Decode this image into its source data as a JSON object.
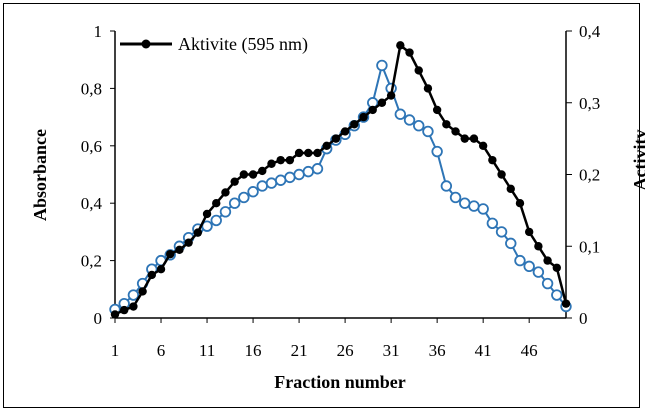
{
  "chart_data": {
    "type": "line",
    "title": "",
    "xlabel": "Fraction number",
    "ylabel_left": "Absorbance",
    "ylabel_right": "Activitv",
    "x_ticks": [
      "1",
      "6",
      "11",
      "16",
      "21",
      "26",
      "31",
      "36",
      "41",
      "46"
    ],
    "y_left_ticks": [
      "0",
      "0,2",
      "0,4",
      "0,6",
      "0,8",
      "1"
    ],
    "y_right_ticks": [
      "0",
      "0,1",
      "0,2",
      "0,3",
      "0,4"
    ],
    "ylim_left": [
      0,
      1
    ],
    "ylim_right": [
      0,
      0.4
    ],
    "xlim": [
      1,
      50
    ],
    "legend": {
      "position": "top-left",
      "label": "Aktivite (595 nm)"
    },
    "series": [
      {
        "name": "Aktivite (595 nm)",
        "axis": "right",
        "color": "#000000",
        "x": [
          1,
          2,
          3,
          4,
          5,
          6,
          7,
          8,
          9,
          10,
          11,
          12,
          13,
          14,
          15,
          16,
          17,
          18,
          19,
          20,
          21,
          22,
          23,
          24,
          25,
          26,
          27,
          28,
          29,
          30,
          31,
          32,
          33,
          34,
          35,
          36,
          37,
          38,
          39,
          40,
          41,
          42,
          43,
          44,
          45,
          46,
          47,
          48,
          49,
          50
        ],
        "values": [
          0.005,
          0.011,
          0.016,
          0.037,
          0.06,
          0.068,
          0.089,
          0.095,
          0.105,
          0.119,
          0.145,
          0.16,
          0.175,
          0.19,
          0.2,
          0.2,
          0.205,
          0.215,
          0.22,
          0.22,
          0.23,
          0.23,
          0.23,
          0.24,
          0.25,
          0.26,
          0.27,
          0.28,
          0.29,
          0.3,
          0.31,
          0.38,
          0.37,
          0.345,
          0.32,
          0.29,
          0.27,
          0.26,
          0.25,
          0.25,
          0.24,
          0.22,
          0.2,
          0.18,
          0.16,
          0.12,
          0.1,
          0.08,
          0.07,
          0.02
        ]
      },
      {
        "name": "",
        "axis": "left",
        "color": "#2e75b6",
        "x": [
          1,
          2,
          3,
          4,
          5,
          6,
          7,
          8,
          9,
          10,
          11,
          12,
          13,
          14,
          15,
          16,
          17,
          18,
          19,
          20,
          21,
          22,
          23,
          24,
          25,
          26,
          27,
          28,
          29,
          30,
          31,
          32,
          33,
          34,
          35,
          36,
          37,
          38,
          39,
          40,
          41,
          42,
          43,
          44,
          45,
          46,
          47,
          48,
          49,
          50
        ],
        "values": [
          0.03,
          0.05,
          0.08,
          0.12,
          0.17,
          0.2,
          0.22,
          0.25,
          0.28,
          0.31,
          0.32,
          0.34,
          0.37,
          0.4,
          0.42,
          0.44,
          0.46,
          0.47,
          0.48,
          0.49,
          0.5,
          0.51,
          0.52,
          0.59,
          0.62,
          0.64,
          0.67,
          0.7,
          0.75,
          0.88,
          0.8,
          0.71,
          0.69,
          0.67,
          0.65,
          0.58,
          0.46,
          0.42,
          0.4,
          0.39,
          0.38,
          0.33,
          0.3,
          0.26,
          0.2,
          0.18,
          0.16,
          0.12,
          0.08,
          0.04
        ]
      }
    ]
  }
}
